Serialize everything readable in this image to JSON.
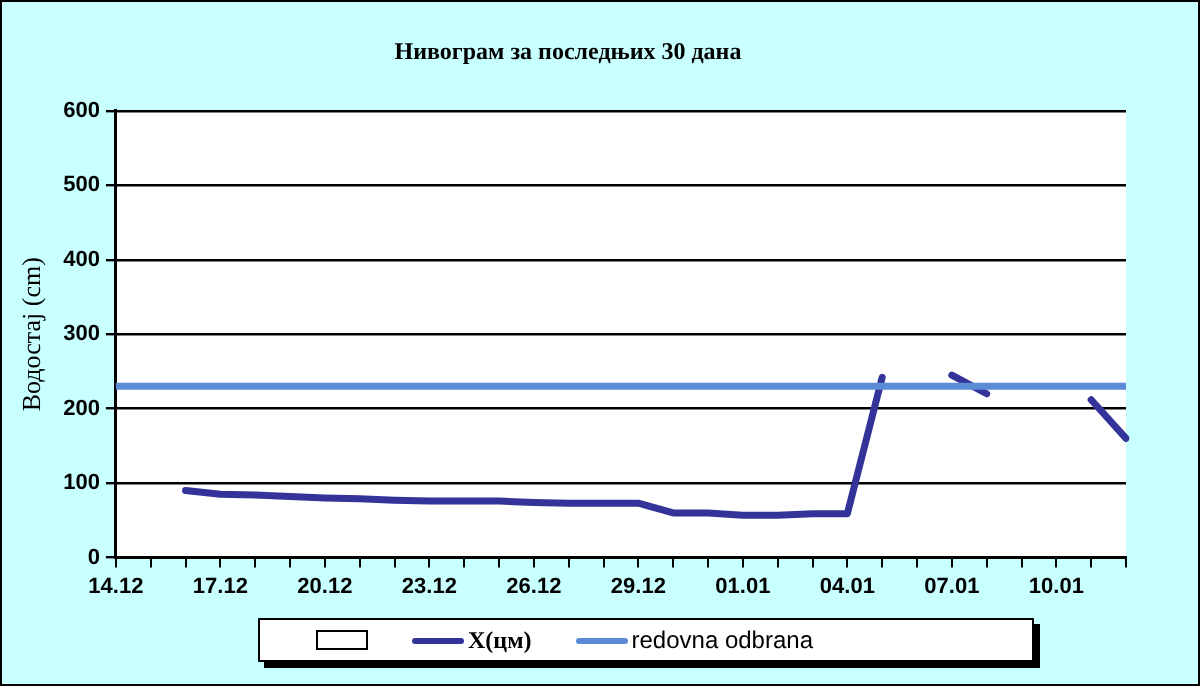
{
  "chart_data": {
    "type": "line",
    "title": "Нивограм за последњих 30 дана",
    "ylabel": "Водостај (cm)",
    "categories": [
      "14.12",
      null,
      null,
      "17.12",
      null,
      null,
      "20.12",
      null,
      null,
      "23.12",
      null,
      null,
      "26.12",
      null,
      null,
      "29.12",
      null,
      null,
      "01.01",
      null,
      null,
      "04.01",
      null,
      null,
      "07.01",
      null,
      null,
      "10.01",
      null,
      null
    ],
    "series": [
      {
        "name": "X(цм)",
        "color": "#333399",
        "values": [
          null,
          null,
          90,
          85,
          84,
          82,
          80,
          79,
          77,
          76,
          76,
          76,
          74,
          73,
          73,
          73,
          60,
          60,
          57,
          57,
          59,
          59,
          242,
          null,
          245,
          220,
          null,
          null,
          212,
          160
        ]
      }
    ],
    "ref_lines": [
      {
        "axis": "y",
        "value": 230,
        "label": "redovna odbrana",
        "color": "#5b8bd5"
      }
    ],
    "ylim": [
      0,
      600
    ],
    "yticks": [
      0,
      100,
      200,
      300,
      400,
      500,
      600
    ],
    "grid": "y",
    "legend": "bottom",
    "marker": "none",
    "line_style": "solid"
  }
}
